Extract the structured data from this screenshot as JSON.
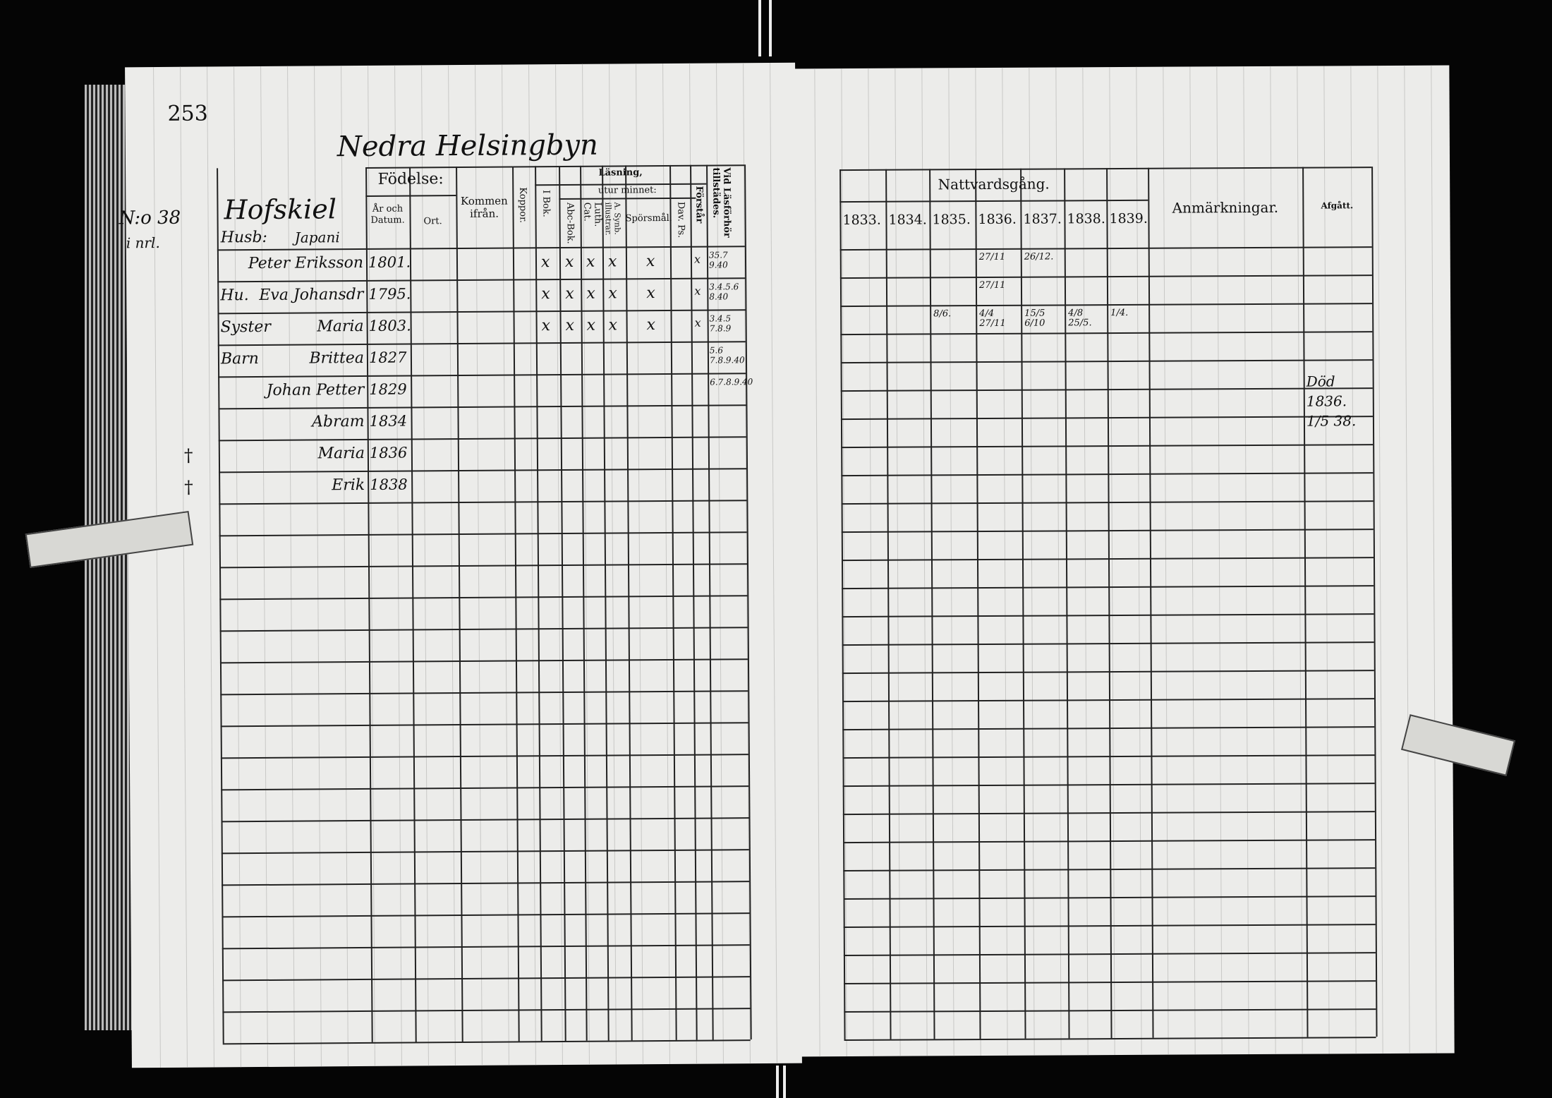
{
  "left_page": {
    "page_number": "253",
    "village": "Nedra Helsingbyn",
    "household_no": "N:o 38",
    "household_sub": "i nrl.",
    "household_title": "Hofskiel",
    "household_title2": "Japani",
    "husb_label": "Husb:",
    "headers": {
      "fodelse": "Födelse:",
      "ar_datum": "År och Datum.",
      "ort": "Ort.",
      "kommen": "Kommen ifrån.",
      "koppor": "Koppor.",
      "lasning": "Läsning,",
      "utur_minnet": "utur minnet:",
      "i_bok": "I Bok.",
      "abc_bok": "Abc-Bok.",
      "luth_cat": "Luth. Cat.",
      "synb": "A. Synb. illustrar.",
      "sporsmal": "Spörsmål.",
      "dav_ps": "Dav. Ps.",
      "forstar": "Förstår",
      "lasforhor": "Vid Läsförhör tillstädes."
    },
    "persons": [
      {
        "role": "",
        "name": "Peter Eriksson",
        "born": "1801.",
        "marks": [
          "x",
          "x",
          "x",
          "x",
          "x"
        ],
        "forstar": "x",
        "lasforhor": "35.7 9.40"
      },
      {
        "role": "Hu.",
        "name": "Eva Johansdr",
        "born": "1795.",
        "marks": [
          "x",
          "x",
          "x",
          "x",
          "x"
        ],
        "forstar": "x",
        "lasforhor": "3.4.5.6 8.40"
      },
      {
        "role": "Syster",
        "name": "Maria",
        "born": "1803.",
        "marks": [
          "x",
          "x",
          "x",
          "x",
          "x"
        ],
        "forstar": "x",
        "lasforhor": "3.4.5 7.8.9"
      },
      {
        "role": "Barn",
        "name": "Brittea",
        "born": "1827",
        "marks": [],
        "forstar": "",
        "lasforhor": "5.6 7.8.9.40"
      },
      {
        "role": "",
        "name": "Johan Petter",
        "born": "1829",
        "marks": [],
        "forstar": "",
        "lasforhor": "6.7.8.9.40"
      },
      {
        "role": "",
        "name": "Abram",
        "born": "1834",
        "marks": [],
        "forstar": "",
        "lasforhor": ""
      },
      {
        "role": "",
        "name": "Maria",
        "born": "1836",
        "marks": [],
        "forstar": "",
        "lasforhor": "",
        "deceased": "†"
      },
      {
        "role": "",
        "name": "Erik",
        "born": "1838",
        "marks": [],
        "forstar": "",
        "lasforhor": "",
        "deceased": "†"
      }
    ]
  },
  "right_page": {
    "nattvard_title": "Nattvardsgång.",
    "years": [
      "1833.",
      "1834.",
      "1835.",
      "1836.",
      "1837.",
      "1838.",
      "1839."
    ],
    "anmarkningar": "Anmärkningar.",
    "afgatt": "Afgått.",
    "rows": [
      [
        "",
        "",
        "",
        "27/11",
        "26/12.",
        "",
        ""
      ],
      [
        "",
        "",
        "",
        "27/11",
        "",
        "",
        ""
      ],
      [
        "",
        "",
        "8/6.",
        "4/4 27/11",
        "15/5 6/10",
        "4/8 25/5.",
        "1/4."
      ]
    ],
    "afgatt_entries": [
      "Död",
      "1836.",
      "1/5 38."
    ]
  }
}
